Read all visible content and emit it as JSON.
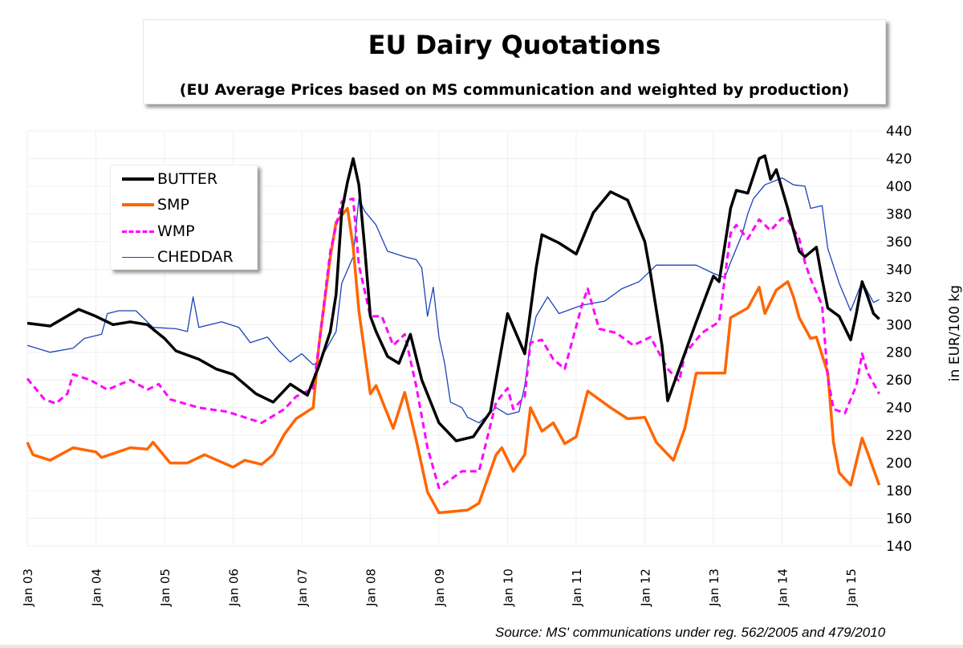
{
  "chart_data": {
    "type": "line",
    "title": "EU Dairy Quotations",
    "subtitle": "(EU Average Prices based on MS communication and weighted by production)",
    "ylabel": "in EUR/100 kg",
    "xlabel": "",
    "ylim": [
      140,
      440
    ],
    "yticks": [
      "140",
      "160",
      "180",
      "200",
      "220",
      "240",
      "260",
      "280",
      "300",
      "320",
      "340",
      "360",
      "380",
      "400",
      "420",
      "440"
    ],
    "xticks": [
      "Jan 03",
      "Jan 04",
      "Jan 05",
      "Jan 06",
      "Jan 07",
      "Jan 08",
      "Jan 09",
      "Jan 10",
      "Jan 11",
      "Jan 12",
      "Jan 13",
      "Jan 14",
      "Jan 15"
    ],
    "y_axis_position": "right",
    "grid": true,
    "legend_position": "top-left",
    "source": "Source: MS' communications under reg. 562/2005 and 479/2010",
    "series": [
      {
        "name": "BUTTER",
        "color": "#000000",
        "style": "solid-thick",
        "points": [
          [
            "2003-01",
            301
          ],
          [
            "2003-05",
            299
          ],
          [
            "2003-10",
            311
          ],
          [
            "2004-01",
            306
          ],
          [
            "2004-04",
            300
          ],
          [
            "2004-07",
            302
          ],
          [
            "2004-10",
            300
          ],
          [
            "2005-01",
            290
          ],
          [
            "2005-03",
            281
          ],
          [
            "2005-07",
            275
          ],
          [
            "2005-10",
            268
          ],
          [
            "2006-01",
            264
          ],
          [
            "2006-05",
            250
          ],
          [
            "2006-08",
            244
          ],
          [
            "2006-11",
            257
          ],
          [
            "2007-02",
            249
          ],
          [
            "2007-04",
            270
          ],
          [
            "2007-06",
            295
          ],
          [
            "2007-07",
            322
          ],
          [
            "2007-08",
            382
          ],
          [
            "2007-09",
            403
          ],
          [
            "2007-10",
            420
          ],
          [
            "2007-11",
            401
          ],
          [
            "2007-12",
            356
          ],
          [
            "2008-01",
            306
          ],
          [
            "2008-02",
            295
          ],
          [
            "2008-04",
            277
          ],
          [
            "2008-06",
            272
          ],
          [
            "2008-08",
            293
          ],
          [
            "2008-10",
            260
          ],
          [
            "2009-01",
            229
          ],
          [
            "2009-04",
            216
          ],
          [
            "2009-07",
            219
          ],
          [
            "2009-10",
            237
          ],
          [
            "2010-01",
            308
          ],
          [
            "2010-04",
            279
          ],
          [
            "2010-06",
            341
          ],
          [
            "2010-07",
            365
          ],
          [
            "2010-10",
            359
          ],
          [
            "2011-01",
            351
          ],
          [
            "2011-04",
            381
          ],
          [
            "2011-07",
            396
          ],
          [
            "2011-10",
            390
          ],
          [
            "2012-01",
            360
          ],
          [
            "2012-02",
            337
          ],
          [
            "2012-04",
            285
          ],
          [
            "2012-05",
            245
          ],
          [
            "2012-07",
            268
          ],
          [
            "2012-10",
            302
          ],
          [
            "2013-01",
            335
          ],
          [
            "2013-02",
            331
          ],
          [
            "2013-04",
            384
          ],
          [
            "2013-05",
            397
          ],
          [
            "2013-07",
            395
          ],
          [
            "2013-09",
            420
          ],
          [
            "2013-10",
            422
          ],
          [
            "2013-11",
            405
          ],
          [
            "2013-12",
            412
          ],
          [
            "2014-02",
            384
          ],
          [
            "2014-03",
            368
          ],
          [
            "2014-04",
            353
          ],
          [
            "2014-05",
            349
          ],
          [
            "2014-07",
            356
          ],
          [
            "2014-08",
            333
          ],
          [
            "2014-09",
            312
          ],
          [
            "2014-11",
            306
          ],
          [
            "2015-01",
            289
          ],
          [
            "2015-02",
            308
          ],
          [
            "2015-03",
            331
          ],
          [
            "2015-04",
            320
          ],
          [
            "2015-05",
            308
          ],
          [
            "2015-06",
            304
          ]
        ]
      },
      {
        "name": "SMP",
        "color": "#ff6600",
        "style": "solid-thick",
        "points": [
          [
            "2003-01",
            215
          ],
          [
            "2003-02",
            206
          ],
          [
            "2003-05",
            202
          ],
          [
            "2003-09",
            211
          ],
          [
            "2004-01",
            208
          ],
          [
            "2004-02",
            204
          ],
          [
            "2004-07",
            211
          ],
          [
            "2004-10",
            210
          ],
          [
            "2004-11",
            215
          ],
          [
            "2005-02",
            200
          ],
          [
            "2005-05",
            200
          ],
          [
            "2005-08",
            206
          ],
          [
            "2006-01",
            197
          ],
          [
            "2006-03",
            202
          ],
          [
            "2006-06",
            199
          ],
          [
            "2006-08",
            206
          ],
          [
            "2006-10",
            221
          ],
          [
            "2006-12",
            232
          ],
          [
            "2007-03",
            240
          ],
          [
            "2007-04",
            285
          ],
          [
            "2007-06",
            349
          ],
          [
            "2007-07",
            374
          ],
          [
            "2007-09",
            384
          ],
          [
            "2007-10",
            356
          ],
          [
            "2007-11",
            310
          ],
          [
            "2008-01",
            250
          ],
          [
            "2008-02",
            256
          ],
          [
            "2008-05",
            225
          ],
          [
            "2008-07",
            251
          ],
          [
            "2008-09",
            217
          ],
          [
            "2008-11",
            179
          ],
          [
            "2009-01",
            164
          ],
          [
            "2009-06",
            166
          ],
          [
            "2009-08",
            171
          ],
          [
            "2009-11",
            206
          ],
          [
            "2009-12",
            211
          ],
          [
            "2010-02",
            194
          ],
          [
            "2010-04",
            206
          ],
          [
            "2010-05",
            240
          ],
          [
            "2010-07",
            223
          ],
          [
            "2010-09",
            229
          ],
          [
            "2010-11",
            214
          ],
          [
            "2011-01",
            219
          ],
          [
            "2011-03",
            252
          ],
          [
            "2011-07",
            240
          ],
          [
            "2011-10",
            232
          ],
          [
            "2012-01",
            233
          ],
          [
            "2012-03",
            215
          ],
          [
            "2012-06",
            202
          ],
          [
            "2012-08",
            225
          ],
          [
            "2012-10",
            265
          ],
          [
            "2013-01",
            265
          ],
          [
            "2013-03",
            265
          ],
          [
            "2013-04",
            305
          ],
          [
            "2013-07",
            312
          ],
          [
            "2013-09",
            327
          ],
          [
            "2013-10",
            308
          ],
          [
            "2013-12",
            325
          ],
          [
            "2014-02",
            331
          ],
          [
            "2014-03",
            320
          ],
          [
            "2014-04",
            305
          ],
          [
            "2014-06",
            290
          ],
          [
            "2014-07",
            291
          ],
          [
            "2014-09",
            265
          ],
          [
            "2014-10",
            215
          ],
          [
            "2014-11",
            193
          ],
          [
            "2015-01",
            184
          ],
          [
            "2015-03",
            218
          ],
          [
            "2015-04",
            207
          ],
          [
            "2015-06",
            184
          ]
        ]
      },
      {
        "name": "WMP",
        "color": "#ff00ff",
        "style": "dashed",
        "points": [
          [
            "2003-01",
            261
          ],
          [
            "2003-04",
            246
          ],
          [
            "2003-06",
            243
          ],
          [
            "2003-08",
            250
          ],
          [
            "2003-09",
            264
          ],
          [
            "2003-12",
            260
          ],
          [
            "2004-03",
            253
          ],
          [
            "2004-07",
            260
          ],
          [
            "2004-10",
            253
          ],
          [
            "2004-12",
            257
          ],
          [
            "2005-02",
            246
          ],
          [
            "2005-07",
            240
          ],
          [
            "2005-12",
            237
          ],
          [
            "2006-06",
            229
          ],
          [
            "2006-10",
            239
          ],
          [
            "2006-12",
            248
          ],
          [
            "2007-03",
            254
          ],
          [
            "2007-04",
            285
          ],
          [
            "2007-06",
            353
          ],
          [
            "2007-08",
            389
          ],
          [
            "2007-10",
            391
          ],
          [
            "2007-11",
            343
          ],
          [
            "2008-01",
            306
          ],
          [
            "2008-03",
            306
          ],
          [
            "2008-05",
            285
          ],
          [
            "2008-07",
            293
          ],
          [
            "2008-09",
            256
          ],
          [
            "2008-11",
            211
          ],
          [
            "2009-01",
            182
          ],
          [
            "2009-05",
            194
          ],
          [
            "2009-08",
            194
          ],
          [
            "2009-11",
            244
          ],
          [
            "2010-01",
            254
          ],
          [
            "2010-02",
            239
          ],
          [
            "2010-04",
            248
          ],
          [
            "2010-05",
            287
          ],
          [
            "2010-07",
            289
          ],
          [
            "2010-09",
            275
          ],
          [
            "2010-11",
            268
          ],
          [
            "2011-02",
            314
          ],
          [
            "2011-03",
            326
          ],
          [
            "2011-05",
            297
          ],
          [
            "2011-08",
            294
          ],
          [
            "2011-11",
            285
          ],
          [
            "2012-02",
            291
          ],
          [
            "2012-05",
            268
          ],
          [
            "2012-07",
            259
          ],
          [
            "2012-08",
            279
          ],
          [
            "2012-11",
            294
          ],
          [
            "2013-02",
            302
          ],
          [
            "2013-04",
            366
          ],
          [
            "2013-05",
            372
          ],
          [
            "2013-07",
            362
          ],
          [
            "2013-09",
            376
          ],
          [
            "2013-11",
            368
          ],
          [
            "2014-01",
            377
          ],
          [
            "2014-02",
            376
          ],
          [
            "2014-04",
            362
          ],
          [
            "2014-05",
            345
          ],
          [
            "2014-06",
            333
          ],
          [
            "2014-08",
            314
          ],
          [
            "2014-09",
            262
          ],
          [
            "2014-10",
            239
          ],
          [
            "2014-12",
            236
          ],
          [
            "2015-02",
            256
          ],
          [
            "2015-03",
            279
          ],
          [
            "2015-04",
            265
          ],
          [
            "2015-06",
            250
          ]
        ]
      },
      {
        "name": "CHEDDAR",
        "color": "#1a44b8",
        "style": "solid-thin",
        "points": [
          [
            "2003-01",
            285
          ],
          [
            "2003-05",
            280
          ],
          [
            "2003-09",
            283
          ],
          [
            "2003-11",
            290
          ],
          [
            "2004-02",
            293
          ],
          [
            "2004-03",
            308
          ],
          [
            "2004-05",
            310
          ],
          [
            "2004-08",
            310
          ],
          [
            "2004-11",
            298
          ],
          [
            "2005-03",
            297
          ],
          [
            "2005-05",
            295
          ],
          [
            "2005-06",
            320
          ],
          [
            "2005-07",
            298
          ],
          [
            "2005-11",
            302
          ],
          [
            "2006-02",
            298
          ],
          [
            "2006-04",
            287
          ],
          [
            "2006-07",
            291
          ],
          [
            "2006-09",
            281
          ],
          [
            "2006-11",
            273
          ],
          [
            "2007-01",
            279
          ],
          [
            "2007-03",
            271
          ],
          [
            "2007-04",
            273
          ],
          [
            "2007-07",
            295
          ],
          [
            "2007-08",
            330
          ],
          [
            "2007-10",
            349
          ],
          [
            "2007-11",
            391
          ],
          [
            "2007-12",
            382
          ],
          [
            "2008-02",
            372
          ],
          [
            "2008-04",
            353
          ],
          [
            "2008-07",
            349
          ],
          [
            "2008-09",
            347
          ],
          [
            "2008-10",
            341
          ],
          [
            "2008-11",
            306
          ],
          [
            "2008-12",
            327
          ],
          [
            "2009-01",
            291
          ],
          [
            "2009-02",
            272
          ],
          [
            "2009-03",
            244
          ],
          [
            "2009-05",
            240
          ],
          [
            "2009-06",
            233
          ],
          [
            "2009-08",
            229
          ],
          [
            "2009-11",
            240
          ],
          [
            "2010-01",
            235
          ],
          [
            "2010-03",
            237
          ],
          [
            "2010-04",
            256
          ],
          [
            "2010-05",
            287
          ],
          [
            "2010-06",
            306
          ],
          [
            "2010-08",
            320
          ],
          [
            "2010-10",
            308
          ],
          [
            "2011-02",
            314
          ],
          [
            "2011-06",
            317
          ],
          [
            "2011-09",
            326
          ],
          [
            "2011-12",
            331
          ],
          [
            "2012-03",
            343
          ],
          [
            "2012-07",
            343
          ],
          [
            "2012-10",
            343
          ],
          [
            "2013-01",
            337
          ],
          [
            "2013-03",
            334
          ],
          [
            "2013-04",
            345
          ],
          [
            "2013-06",
            365
          ],
          [
            "2013-07",
            380
          ],
          [
            "2013-08",
            391
          ],
          [
            "2013-10",
            401
          ],
          [
            "2014-01",
            406
          ],
          [
            "2014-03",
            401
          ],
          [
            "2014-05",
            400
          ],
          [
            "2014-06",
            384
          ],
          [
            "2014-08",
            386
          ],
          [
            "2014-09",
            355
          ],
          [
            "2014-11",
            330
          ],
          [
            "2015-01",
            310
          ],
          [
            "2015-03",
            331
          ],
          [
            "2015-05",
            316
          ],
          [
            "2015-06",
            318
          ]
        ]
      }
    ]
  }
}
